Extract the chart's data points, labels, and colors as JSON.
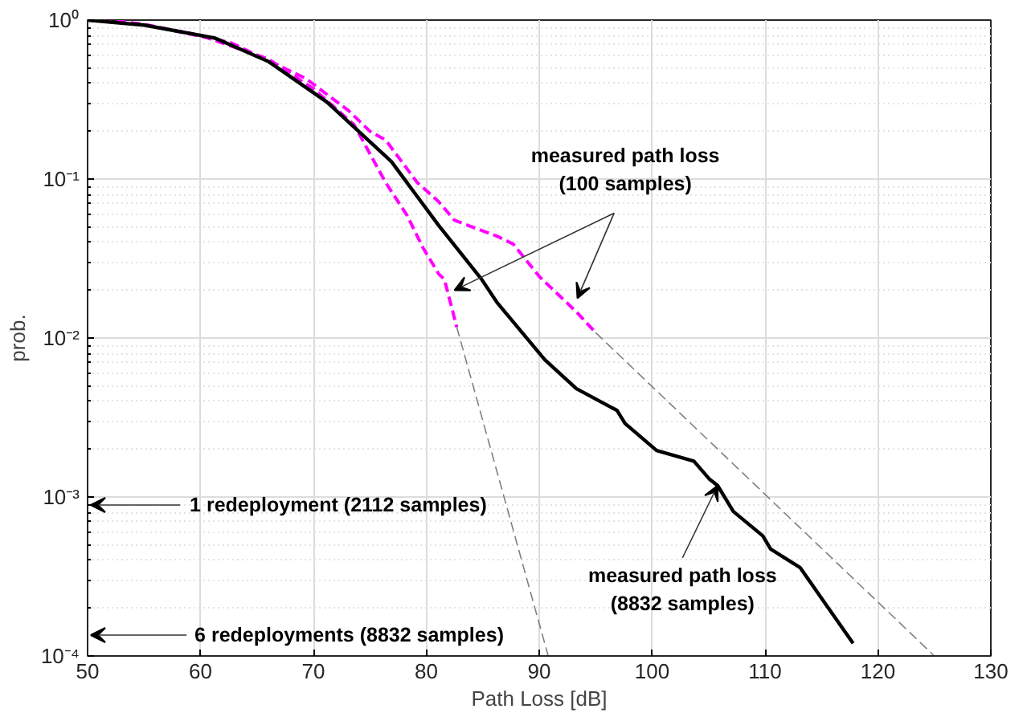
{
  "chart_data": {
    "type": "line",
    "xlabel": "Path Loss [dB]",
    "ylabel": "prob.",
    "log": "y",
    "grid": true,
    "xlim": [
      50,
      130
    ],
    "xticks": [
      50,
      60,
      70,
      80,
      90,
      100,
      110,
      120,
      130
    ],
    "ylim": [
      0.0001,
      1
    ],
    "yticks": [
      {
        "value": 0.0001,
        "label": "10⁻⁴"
      },
      {
        "value": 0.001,
        "label": "10⁻³"
      },
      {
        "value": 0.01,
        "label": "10⁻²"
      },
      {
        "value": 0.1,
        "label": "10⁻¹"
      },
      {
        "value": 1,
        "label": "10⁰"
      }
    ],
    "series": [
      {
        "color": "#ff00ff",
        "line_style": "dashed",
        "x": [
          50,
          55,
          60,
          66,
          70,
          73.6,
          76.4,
          78.3,
          79.7,
          81.1,
          81.6,
          82.7
        ],
        "values": [
          1,
          0.94,
          0.8,
          0.57,
          0.37,
          0.22,
          0.095,
          0.059,
          0.037,
          0.0253,
          0.0234,
          0.0117
        ]
      },
      {
        "color": "#ff00ff",
        "line_style": "dashed",
        "x": [
          50,
          51.9,
          55,
          62.7,
          69.3,
          73.1,
          75,
          76.4,
          79.2,
          81.1,
          82.5,
          86.3,
          87.7,
          90,
          93.3,
          95
        ],
        "values": [
          1,
          1,
          0.94,
          0.72,
          0.43,
          0.27,
          0.2,
          0.176,
          0.095,
          0.072,
          0.055,
          0.0436,
          0.039,
          0.0244,
          0.0146,
          0.0108
        ]
      },
      {
        "color": "#808080",
        "line_style": "dashed",
        "x": [
          82.7,
          90.8
        ],
        "values": [
          0.0117,
          0.0001
        ]
      },
      {
        "color": "#808080",
        "line_style": "dashed",
        "x": [
          95,
          125
        ],
        "values": [
          0.0108,
          0.0001
        ]
      },
      {
        "color": "#000000",
        "line_style": "solid",
        "x": [
          50,
          55,
          61.3,
          66,
          71.2,
          76.9,
          81.1,
          84.9,
          86.3,
          90.5,
          93.3,
          96.9,
          97.6,
          100.4,
          103.7,
          105.1,
          105.8,
          107.2,
          109.8,
          110.5,
          113.1,
          117.8
        ],
        "values": [
          1,
          0.93,
          0.77,
          0.55,
          0.305,
          0.129,
          0.051,
          0.0234,
          0.0166,
          0.0073,
          0.0048,
          0.0035,
          0.0029,
          0.00196,
          0.00168,
          0.00129,
          0.00118,
          0.00081,
          0.00057,
          0.00047,
          0.00036,
          0.00012
        ]
      }
    ],
    "annotations": [
      {
        "text": "measured path loss\n(100 samples)",
        "x": 82.5,
        "y": 0.02
      },
      {
        "text": "measured path loss\n(8832 samples)",
        "x": 105.8,
        "y": 0.00118
      },
      "1 redeployment (2112 samples)",
      "6 redeployments (8832 samples)"
    ]
  }
}
